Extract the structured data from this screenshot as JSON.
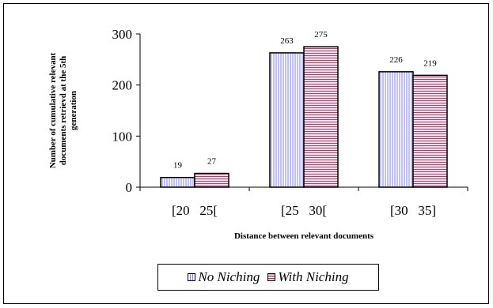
{
  "chart_data": {
    "type": "bar",
    "title": "",
    "xlabel": "Distance between relevant documents",
    "ylabel": "Number of cumulative relevant documents retrievd at the 5th generation",
    "ylabel_lines": [
      "Number of cumulative relevant",
      "documents retrievd at the 5th",
      "generation"
    ],
    "categories": [
      "[20   25[",
      "[25   30[",
      "[30   35]"
    ],
    "series": [
      {
        "name": "No Niching",
        "values": [
          19,
          263,
          226
        ],
        "color": "#8080ff",
        "pattern": "vertical-lines"
      },
      {
        "name": "With Niching",
        "values": [
          27,
          275,
          219
        ],
        "color": "#b0406b",
        "pattern": "horizontal-lines"
      }
    ],
    "ylim": [
      0,
      300
    ],
    "yticks": [
      0,
      100,
      200,
      300
    ],
    "grid": false,
    "legend_position": "bottom",
    "data_labels": true
  }
}
